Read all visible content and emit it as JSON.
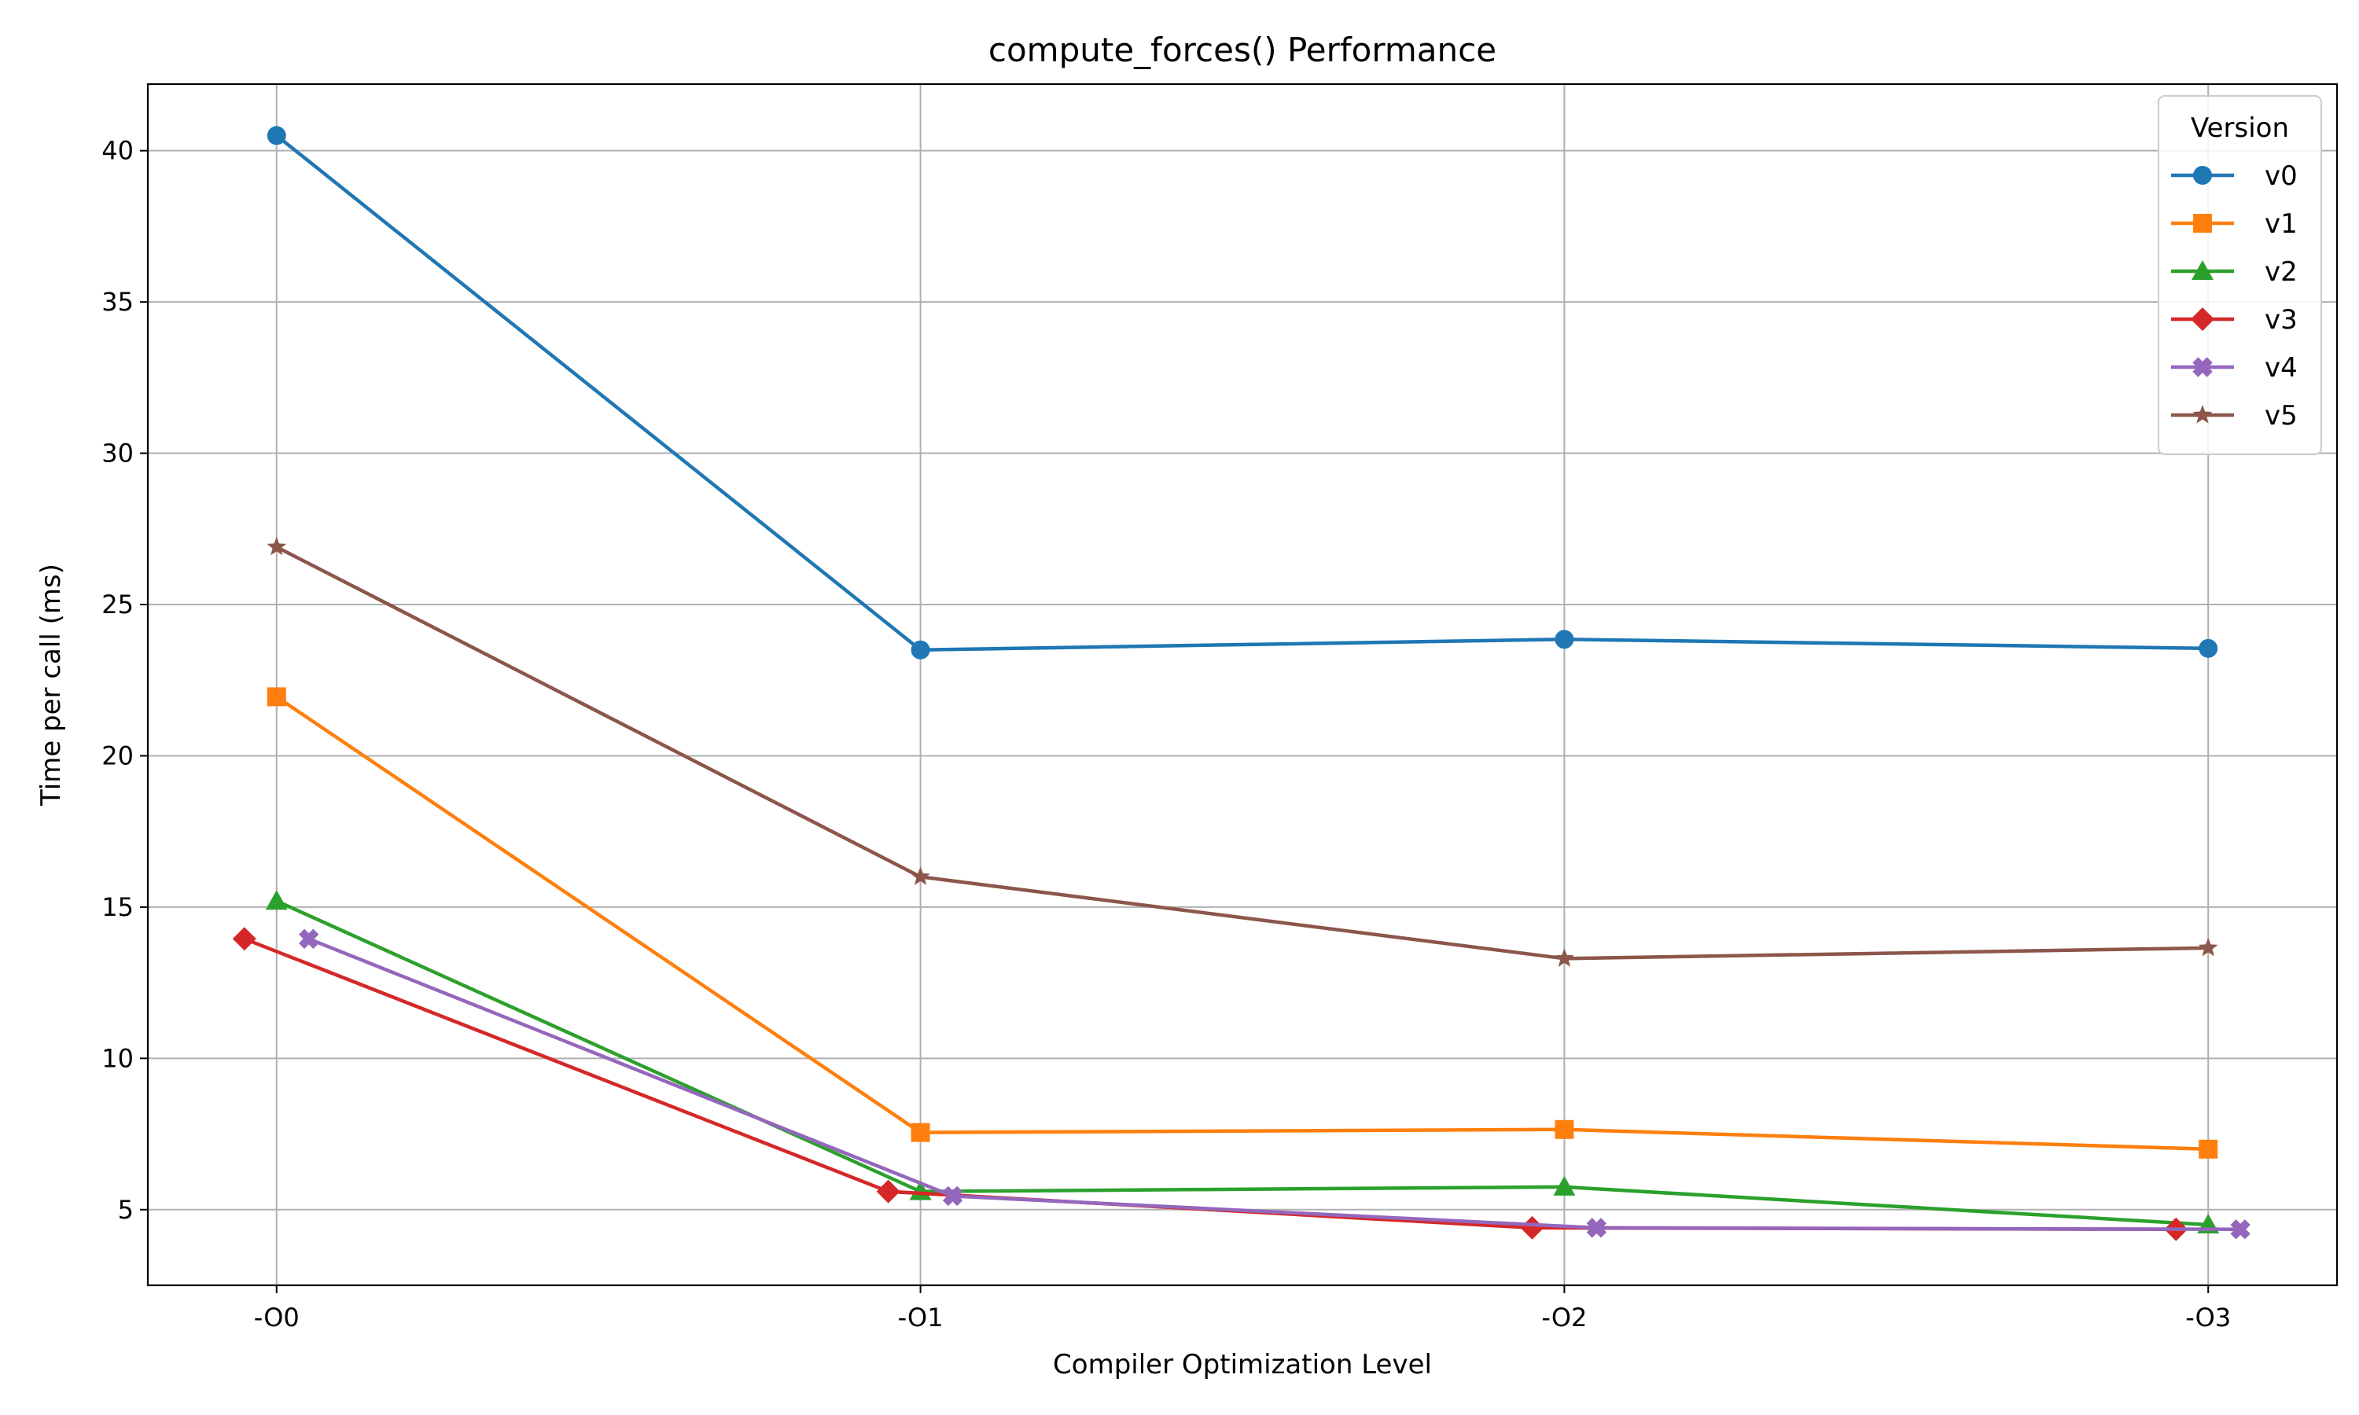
{
  "chart_data": {
    "type": "line",
    "title": "compute_forces() Performance",
    "xlabel": "Compiler Optimization Level",
    "ylabel": "Time per call (ms)",
    "categories": [
      "-O0",
      "-O1",
      "-O2",
      "-O3"
    ],
    "ylim": [
      2.5,
      42.2
    ],
    "yticks": [
      5,
      10,
      15,
      20,
      25,
      30,
      35,
      40
    ],
    "grid": true,
    "legend": {
      "title": "Version",
      "placement": "top-right"
    },
    "series": [
      {
        "name": "v0",
        "color": "#1f77b4",
        "marker": "circle",
        "offset": 0,
        "values": [
          40.5,
          23.5,
          23.85,
          23.55
        ]
      },
      {
        "name": "v1",
        "color": "#ff7f0e",
        "marker": "square",
        "offset": 0,
        "values": [
          21.95,
          7.55,
          7.65,
          7.0
        ]
      },
      {
        "name": "v2",
        "color": "#2ca02c",
        "marker": "triangle",
        "offset": 0,
        "values": [
          15.2,
          5.6,
          5.75,
          4.5
        ]
      },
      {
        "name": "v3",
        "color": "#d62728",
        "marker": "diamond",
        "offset": -0.05,
        "values": [
          13.95,
          5.6,
          4.4,
          4.35
        ]
      },
      {
        "name": "v4",
        "color": "#9467bd",
        "marker": "plus",
        "offset": 0.05,
        "values": [
          13.95,
          5.45,
          4.4,
          4.35
        ]
      },
      {
        "name": "v5",
        "color": "#8c564b",
        "marker": "star",
        "offset": 0,
        "values": [
          26.9,
          16.0,
          13.3,
          13.65
        ]
      }
    ]
  }
}
